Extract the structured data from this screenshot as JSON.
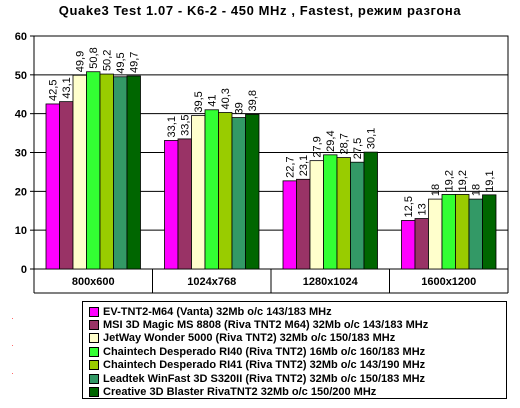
{
  "chart_data": {
    "type": "bar",
    "title": "Quake3 Test 1.07 - K6-2 - 450 MHz ,  Fastest, режим разгона",
    "xlabel": "",
    "ylabel": "",
    "ylim": [
      0,
      60
    ],
    "yticks": [
      0,
      10,
      20,
      30,
      40,
      50,
      60
    ],
    "grid": true,
    "legend_position": "bottom",
    "categories": [
      "800x600",
      "1024x768",
      "1280x1024",
      "1600x1200"
    ],
    "series": [
      {
        "name": "EV-TNT2-M64 (Vanta) 32Mb o/c 143/183 MHz",
        "color": "#ff00ff",
        "values": [
          42.5,
          33.1,
          22.7,
          12.5
        ],
        "labels": [
          "42,5",
          "33,1",
          "22,7",
          "12,5"
        ]
      },
      {
        "name": "MSI 3D Magic MS 8808 (Riva TNT2 M64) 32Mb o/c 143/183 MHz",
        "color": "#993366",
        "values": [
          43.1,
          33.5,
          23.1,
          13
        ],
        "labels": [
          "43,1",
          "33,5",
          "23,1",
          "13"
        ]
      },
      {
        "name": "JetWay Wonder 5000 (Riva TNT2) 32Mb o/c 150/183 MHz",
        "color": "#ffffcc",
        "values": [
          49.9,
          39.5,
          27.9,
          18
        ],
        "labels": [
          "49,9",
          "39,5",
          "27,9",
          "18"
        ]
      },
      {
        "name": "Chaintech Desperado RI40 (Riva TNT2) 16Mb o/c 160/183 MHz",
        "color": "#33ff33",
        "values": [
          50.8,
          41,
          29.4,
          19.2
        ],
        "labels": [
          "50,8",
          "41",
          "29,4",
          "19,2"
        ]
      },
      {
        "name": "Chaintech Desperado RI41 (Riva TNT2) 32Mb o/c 143/190 MHz",
        "color": "#99cc00",
        "values": [
          50.2,
          40.3,
          28.7,
          19.2
        ],
        "labels": [
          "50,2",
          "40,3",
          "28,7",
          "19,2"
        ]
      },
      {
        "name": "Leadtek WinFast 3D S320II (Riva TNT2) 32Mb o/c 150/183 MHz",
        "color": "#339966",
        "values": [
          49.5,
          39,
          27.5,
          18
        ],
        "labels": [
          "49,5",
          "39",
          "27,5",
          "18"
        ]
      },
      {
        "name": "Creative 3D Blaster RivaTNT2 32Mb o/c 150/200 MHz",
        "color": "#006600",
        "values": [
          49.7,
          39.8,
          30.1,
          19.1
        ],
        "labels": [
          "49,7",
          "39,8",
          "30,1",
          "19,1"
        ]
      }
    ]
  }
}
